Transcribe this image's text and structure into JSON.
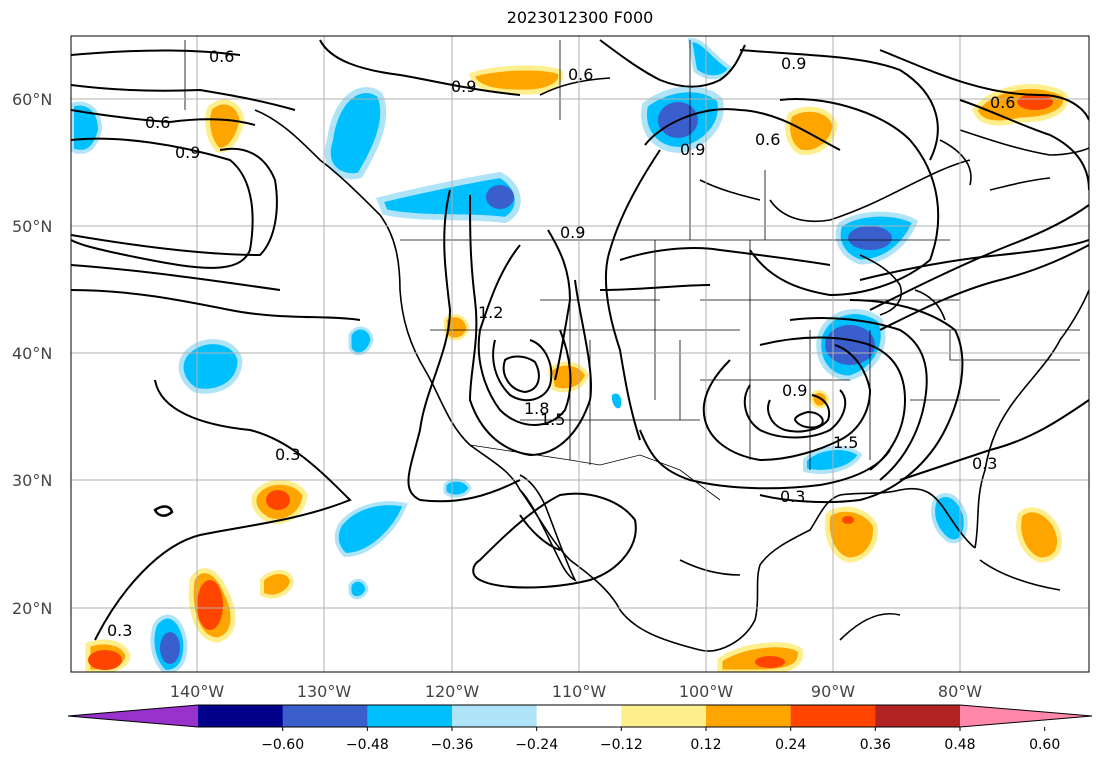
{
  "title": "2023012300 F000",
  "lat_labels": [
    "60°N",
    "50°N",
    "40°N",
    "30°N",
    "20°N"
  ],
  "lon_labels": [
    "140°W",
    "130°W",
    "120°W",
    "110°W",
    "100°W",
    "90°W",
    "80°W"
  ],
  "colorbar": {
    "tick_labels": [
      "−0.60",
      "−0.48",
      "−0.36",
      "−0.24",
      "−0.12",
      "0.12",
      "0.24",
      "0.36",
      "0.48",
      "0.60"
    ],
    "colors": [
      "#9932cc",
      "#00008b",
      "#3a5fcd",
      "#00bfff",
      "#afe4f8",
      "#ffffff",
      "#ffee8c",
      "#ffa500",
      "#ff4500",
      "#b22222",
      "#ff88aa"
    ]
  },
  "contour_labels": [
    "0.6",
    "0.9",
    "0.6",
    "0.9",
    "0.6",
    "0.9",
    "0.6",
    "0.9",
    "0.6",
    "0.9",
    "1.2",
    "1.8",
    "1.5",
    "0.9",
    "1.5",
    "0.3",
    "0.3",
    "0.3",
    "0.3"
  ],
  "fill_colors": {
    "light_blue": "#afe4f8",
    "blue": "#00bfff",
    "royal_blue": "#3a5fcd",
    "light_yellow": "#ffee8c",
    "orange": "#ffa500",
    "red_orange": "#ff4500"
  }
}
